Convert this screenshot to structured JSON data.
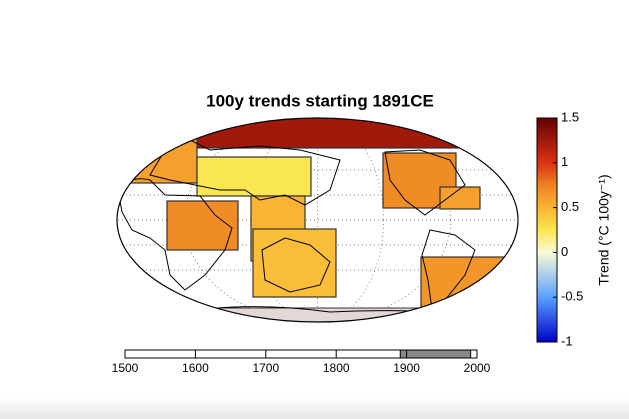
{
  "title": "100y trends starting 1891CE",
  "region_trends": [
    1.25,
    0.6,
    0.25,
    0.7,
    0.5,
    0.45,
    0.7,
    0.6,
    0.65
  ],
  "colorbar": {
    "label": "Trend (°C 100y⁻¹)",
    "lim": [
      -1,
      1.5
    ],
    "ticks": [
      1.5,
      1,
      0.5,
      0,
      -0.5,
      -1
    ]
  },
  "timeline": {
    "lim": [
      1500,
      2000
    ],
    "ticks": [
      1500,
      1600,
      1700,
      1800,
      1900,
      2000
    ],
    "window": [
      1891,
      1991
    ]
  }
}
